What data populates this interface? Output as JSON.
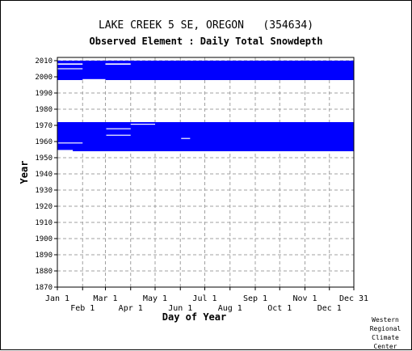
{
  "chart_data": {
    "type": "heatmap",
    "title": "LAKE CREEK 5 SE, OREGON   (354634)",
    "subtitle": "Observed Element : Daily Total Snowdepth",
    "xlabel": "Day of Year",
    "ylabel": "Year",
    "xlim": [
      1,
      365
    ],
    "ylim": [
      1870,
      2011
    ],
    "grid": true,
    "color": "#0000ff",
    "y_ticks": [
      2010,
      2000,
      1990,
      1980,
      1970,
      1960,
      1950,
      1940,
      1930,
      1920,
      1910,
      1900,
      1890,
      1880,
      1870
    ],
    "x_ticks_top": [
      {
        "label": "Jan 1",
        "day": 1
      },
      {
        "label": "Mar 1",
        "day": 60
      },
      {
        "label": "May 1",
        "day": 121
      },
      {
        "label": "Jul 1",
        "day": 182
      },
      {
        "label": "Sep 1",
        "day": 244
      },
      {
        "label": "Nov 1",
        "day": 305
      },
      {
        "label": "Dec 31",
        "day": 365
      }
    ],
    "x_ticks_bottom": [
      {
        "label": "Feb 1",
        "day": 32
      },
      {
        "label": "Apr 1",
        "day": 91
      },
      {
        "label": "Jun 1",
        "day": 152
      },
      {
        "label": "Aug 1",
        "day": 213
      },
      {
        "label": "Oct 1",
        "day": 274
      },
      {
        "label": "Dec 1",
        "day": 335
      }
    ],
    "data_ranges": [
      {
        "day_start": 1,
        "day_end": 365,
        "year_start": 1998,
        "year_end": 2009
      },
      {
        "day_start": 1,
        "day_end": 365,
        "year_start": 1954,
        "year_end": 1971
      }
    ],
    "gaps": [
      {
        "day_start": 1,
        "day_end": 32,
        "year_start": 2007.5,
        "year_end": 2008.3
      },
      {
        "day_start": 1,
        "day_end": 32,
        "year_start": 2004.7,
        "year_end": 2005.3
      },
      {
        "day_start": 60,
        "day_end": 91,
        "year_start": 2007.5,
        "year_end": 2008.3
      },
      {
        "day_start": 2,
        "day_end": 32,
        "year_start": 1958.8,
        "year_end": 1959.4
      },
      {
        "day_start": 61,
        "day_end": 91,
        "year_start": 1967.6,
        "year_end": 1968.2
      },
      {
        "day_start": 61,
        "day_end": 91,
        "year_start": 1963.6,
        "year_end": 1964.2
      },
      {
        "day_start": 153,
        "day_end": 164,
        "year_start": 1961.6,
        "year_end": 1962.2
      },
      {
        "day_start": 91,
        "day_end": 121,
        "year_start": 1970.4,
        "year_end": 1971.0
      },
      {
        "day_start": 1,
        "day_end": 20,
        "year_start": 1953.8,
        "year_end": 1954.8
      },
      {
        "day_start": 32,
        "day_end": 60,
        "year_start": 1997.8,
        "year_end": 1998.6
      }
    ]
  },
  "credit": [
    "Western",
    "Regional",
    "Climate",
    "Center"
  ]
}
